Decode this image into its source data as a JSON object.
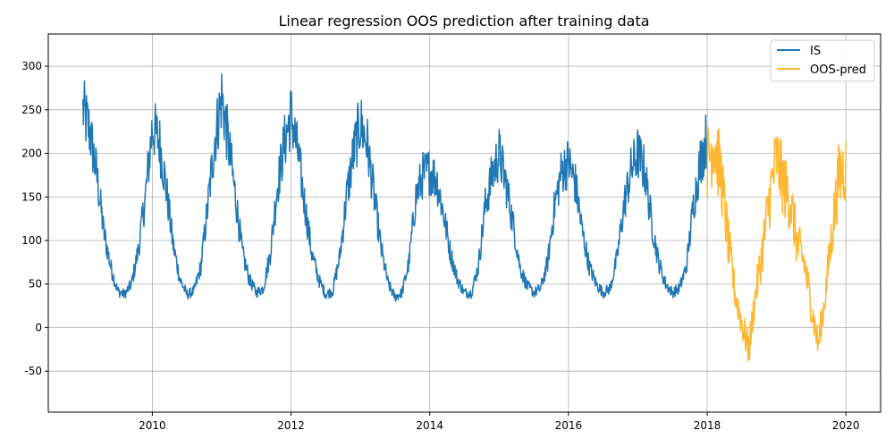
{
  "chart_data": {
    "type": "line",
    "title": "Linear regression OOS prediction after training data",
    "xlabel": "",
    "ylabel": "",
    "xlim": [
      2008.5,
      2020.5
    ],
    "ylim": [
      -97,
      337
    ],
    "x_ticks": [
      2010,
      2012,
      2014,
      2016,
      2018,
      2020
    ],
    "y_ticks": [
      -50,
      0,
      50,
      100,
      150,
      200,
      250,
      300
    ],
    "grid": true,
    "legend_position": "top-right",
    "series": [
      {
        "name": "IS",
        "color": "#1f77b4",
        "x": [
          2009.0,
          2009.1,
          2009.2,
          2009.3,
          2009.4,
          2009.5,
          2009.6,
          2009.7,
          2009.8,
          2009.9,
          2010.0,
          2010.1,
          2010.2,
          2010.3,
          2010.4,
          2010.5,
          2010.6,
          2010.7,
          2010.8,
          2010.9,
          2011.0,
          2011.1,
          2011.2,
          2011.3,
          2011.4,
          2011.5,
          2011.6,
          2011.7,
          2011.8,
          2011.9,
          2012.0,
          2012.1,
          2012.2,
          2012.3,
          2012.4,
          2012.5,
          2012.6,
          2012.7,
          2012.8,
          2012.9,
          2013.0,
          2013.1,
          2013.2,
          2013.3,
          2013.4,
          2013.5,
          2013.6,
          2013.7,
          2013.8,
          2013.9,
          2014.0,
          2014.1,
          2014.2,
          2014.3,
          2014.4,
          2014.5,
          2014.6,
          2014.7,
          2014.8,
          2014.9,
          2015.0,
          2015.1,
          2015.2,
          2015.3,
          2015.4,
          2015.5,
          2015.6,
          2015.7,
          2015.8,
          2015.9,
          2016.0,
          2016.1,
          2016.2,
          2016.3,
          2016.4,
          2016.5,
          2016.6,
          2016.7,
          2016.8,
          2016.9,
          2017.0,
          2017.1,
          2017.2,
          2017.3,
          2017.4,
          2017.5,
          2017.6,
          2017.7,
          2017.8,
          2017.9,
          2018.0
        ],
        "y": [
          250,
          225,
          175,
          110,
          70,
          42,
          38,
          50,
          90,
          150,
          230,
          215,
          160,
          95,
          55,
          38,
          42,
          70,
          140,
          215,
          265,
          210,
          150,
          85,
          55,
          40,
          45,
          85,
          160,
          210,
          245,
          200,
          140,
          85,
          55,
          38,
          42,
          80,
          150,
          200,
          235,
          210,
          150,
          90,
          50,
          35,
          40,
          75,
          150,
          175,
          180,
          170,
          130,
          85,
          55,
          40,
          40,
          70,
          140,
          175,
          200,
          165,
          120,
          70,
          48,
          40,
          45,
          75,
          140,
          180,
          190,
          165,
          110,
          70,
          50,
          40,
          45,
          80,
          140,
          180,
          200,
          180,
          120,
          75,
          50,
          40,
          45,
          70,
          140,
          190,
          220
        ]
      },
      {
        "name": "OOS-pred",
        "color": "#ffb732",
        "x": [
          2018.0,
          2018.1,
          2018.2,
          2018.3,
          2018.4,
          2018.5,
          2018.6,
          2018.7,
          2018.8,
          2018.9,
          2019.0,
          2019.1,
          2019.2,
          2019.3,
          2019.4,
          2019.5,
          2019.6,
          2019.7,
          2019.8,
          2019.9,
          2020.0
        ],
        "y": [
          190,
          215,
          175,
          100,
          40,
          5,
          -25,
          40,
          90,
          150,
          195,
          165,
          145,
          95,
          75,
          25,
          -20,
          35,
          110,
          175,
          185
        ]
      }
    ]
  }
}
